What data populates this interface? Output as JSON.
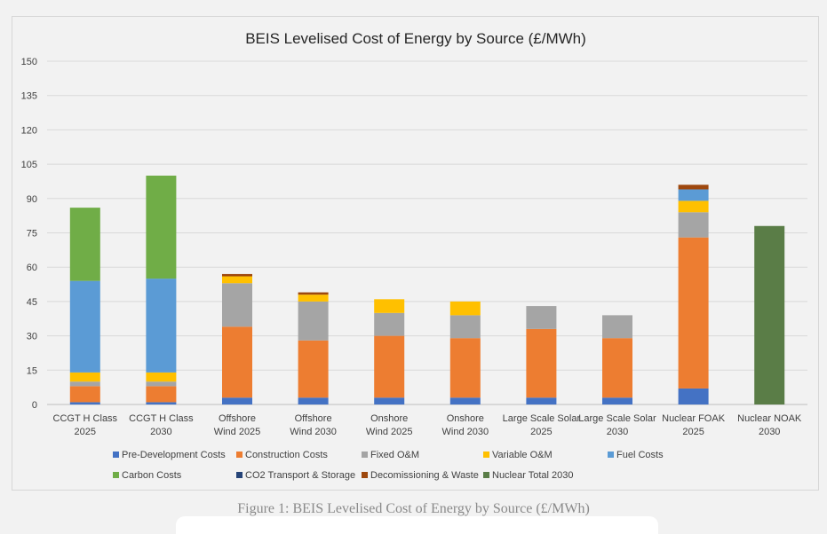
{
  "caption": "Figure 1: BEIS Levelised Cost of Energy by Source (£/MWh)",
  "chart_data": {
    "type": "bar",
    "stacked": true,
    "title": "BEIS Levelised Cost of Energy by Source (£/MWh)",
    "xlabel": "",
    "ylabel": "",
    "ylim": [
      0,
      150
    ],
    "yticks": [
      0,
      15,
      30,
      45,
      60,
      75,
      90,
      105,
      120,
      135,
      150
    ],
    "grid": true,
    "legend_position": "bottom",
    "categories": [
      [
        "CCGT H Class",
        "2025"
      ],
      [
        "CCGT H Class",
        "2030"
      ],
      [
        "Offshore",
        "Wind 2025"
      ],
      [
        "Offshore",
        "Wind 2030"
      ],
      [
        "Onshore",
        "Wind 2025"
      ],
      [
        "Onshore",
        "Wind 2030"
      ],
      [
        "Large Scale Solar",
        "2025"
      ],
      [
        "Large Scale Solar",
        "2030"
      ],
      [
        "Nuclear FOAK",
        "2025"
      ],
      [
        "Nuclear NOAK",
        "2030"
      ]
    ],
    "series": [
      {
        "name": "Pre-Development Costs",
        "color": "#4472c4",
        "values": [
          1,
          1,
          3,
          3,
          3,
          3,
          3,
          3,
          7,
          0
        ]
      },
      {
        "name": "Construction Costs",
        "color": "#ed7d31",
        "values": [
          7,
          7,
          31,
          25,
          27,
          26,
          30,
          26,
          66,
          0
        ]
      },
      {
        "name": "Fixed O&M",
        "color": "#a5a5a5",
        "values": [
          2,
          2,
          19,
          17,
          10,
          10,
          10,
          10,
          11,
          0
        ]
      },
      {
        "name": "Variable O&M",
        "color": "#ffc000",
        "values": [
          4,
          4,
          3,
          3,
          6,
          6,
          0,
          0,
          5,
          0
        ]
      },
      {
        "name": "Fuel Costs",
        "color": "#5b9bd5",
        "values": [
          40,
          41,
          0,
          0,
          0,
          0,
          0,
          0,
          5,
          0
        ]
      },
      {
        "name": "Carbon Costs",
        "color": "#70ad47",
        "values": [
          32,
          45,
          0,
          0,
          0,
          0,
          0,
          0,
          0,
          0
        ]
      },
      {
        "name": "CO2 Transport & Storage",
        "color": "#264478",
        "values": [
          0,
          0,
          0,
          0,
          0,
          0,
          0,
          0,
          0,
          0
        ]
      },
      {
        "name": "Decomissioning & Waste",
        "color": "#9e480e",
        "values": [
          0,
          0,
          1,
          1,
          0,
          0,
          0,
          0,
          2,
          0
        ]
      },
      {
        "name": "Nuclear Total 2030",
        "color": "#5a7d47",
        "values": [
          0,
          0,
          0,
          0,
          0,
          0,
          0,
          0,
          0,
          78
        ]
      }
    ],
    "totals": [
      86,
      100,
      57,
      49,
      46,
      45,
      43,
      39,
      96,
      78
    ]
  }
}
